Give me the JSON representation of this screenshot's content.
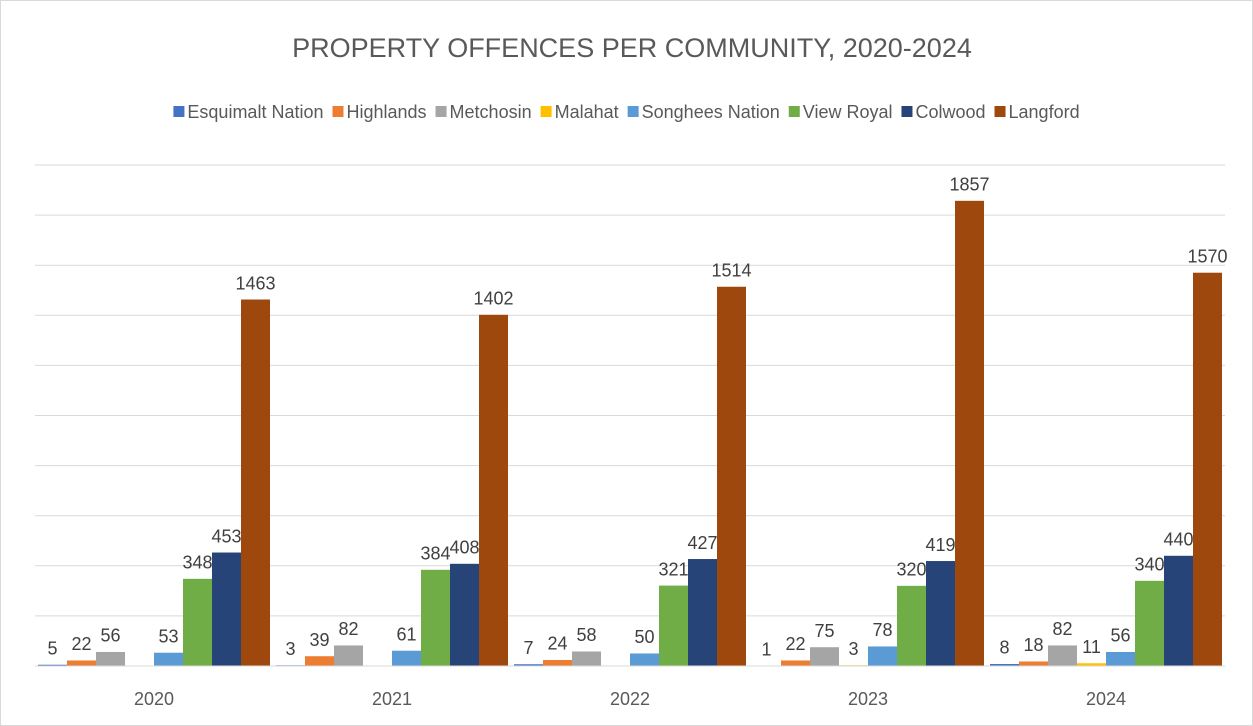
{
  "chart_data": {
    "type": "bar",
    "title": "PROPERTY OFFENCES PER COMMUNITY, 2020-2024",
    "categories": [
      "2020",
      "2021",
      "2022",
      "2023",
      "2024"
    ],
    "series": [
      {
        "name": "Esquimalt Nation",
        "color": "#4472c4",
        "values": [
          5,
          3,
          7,
          1,
          8
        ]
      },
      {
        "name": "Highlands",
        "color": "#ed7d31",
        "values": [
          22,
          39,
          24,
          22,
          18
        ]
      },
      {
        "name": "Metchosin",
        "color": "#a5a5a5",
        "values": [
          56,
          82,
          58,
          75,
          82
        ]
      },
      {
        "name": "Malahat",
        "color": "#ffc000",
        "values": [
          null,
          null,
          null,
          3,
          11
        ]
      },
      {
        "name": "Songhees Nation",
        "color": "#5b9bd5",
        "values": [
          53,
          61,
          50,
          78,
          56
        ]
      },
      {
        "name": "View Royal",
        "color": "#70ad47",
        "values": [
          348,
          384,
          321,
          320,
          340
        ]
      },
      {
        "name": "Colwood",
        "color": "#264478",
        "values": [
          453,
          408,
          427,
          419,
          440
        ]
      },
      {
        "name": "Langford",
        "color": "#9e480e",
        "values": [
          1463,
          1402,
          1514,
          1857,
          1570
        ]
      }
    ],
    "ylim": [
      0,
      2000
    ],
    "yticks": [
      0,
      200,
      400,
      600,
      800,
      1000,
      1200,
      1400,
      1600,
      1800,
      2000
    ],
    "grid": true,
    "legend": "top"
  }
}
